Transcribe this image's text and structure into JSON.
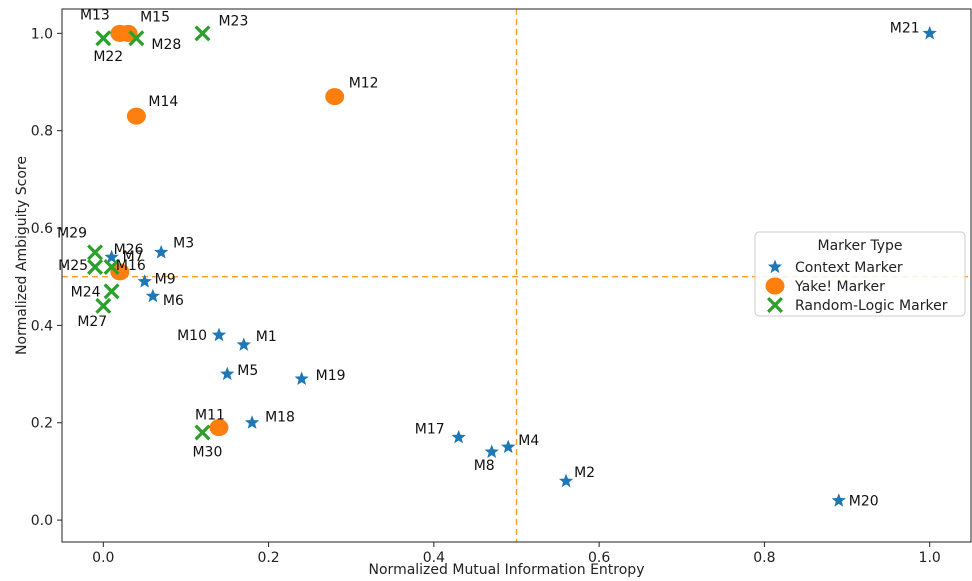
{
  "chart_data": {
    "type": "scatter",
    "title": "",
    "xlabel": "Normalized Mutual Information Entropy",
    "ylabel": "Normalized Ambiguity Score",
    "xlim": [
      -0.05,
      1.05
    ],
    "ylim": [
      -0.045,
      1.05
    ],
    "xticks": [
      0.0,
      0.2,
      0.4,
      0.6,
      0.8,
      1.0
    ],
    "yticks": [
      0.0,
      0.2,
      0.4,
      0.6,
      0.8,
      1.0
    ],
    "xtick_labels": [
      "0.0",
      "0.2",
      "0.4",
      "0.6",
      "0.8",
      "1.0"
    ],
    "ytick_labels": [
      "0.0",
      "0.2",
      "0.4",
      "0.6",
      "0.8",
      "1.0"
    ],
    "reference_lines": {
      "x": 0.5,
      "y": 0.5,
      "color": "#ff9f2a",
      "style": "dashed"
    },
    "grid": false,
    "legend": {
      "title": "Marker Type",
      "placement": "center-right",
      "entries": [
        "Context Marker",
        "Yake! Marker",
        "Random-Logic Marker"
      ]
    },
    "series": [
      {
        "name": "Context Marker",
        "marker": "star",
        "color": "#1f77b4",
        "points": [
          {
            "label": "M1",
            "x": 0.17,
            "y": 0.36
          },
          {
            "label": "M2",
            "x": 0.56,
            "y": 0.08
          },
          {
            "label": "M3",
            "x": 0.07,
            "y": 0.55
          },
          {
            "label": "M4",
            "x": 0.49,
            "y": 0.15
          },
          {
            "label": "M5",
            "x": 0.15,
            "y": 0.3
          },
          {
            "label": "M6",
            "x": 0.06,
            "y": 0.46
          },
          {
            "label": "M7",
            "x": 0.01,
            "y": 0.54
          },
          {
            "label": "M8",
            "x": 0.47,
            "y": 0.14
          },
          {
            "label": "M9",
            "x": 0.05,
            "y": 0.49
          },
          {
            "label": "M10",
            "x": 0.14,
            "y": 0.38
          },
          {
            "label": "M17",
            "x": 0.43,
            "y": 0.17
          },
          {
            "label": "M18",
            "x": 0.18,
            "y": 0.2
          },
          {
            "label": "M19",
            "x": 0.24,
            "y": 0.29
          },
          {
            "label": "M20",
            "x": 0.89,
            "y": 0.04
          },
          {
            "label": "M21",
            "x": 1.0,
            "y": 1.0
          }
        ]
      },
      {
        "name": "Yake! Marker",
        "marker": "circle",
        "color": "#ff7f0e",
        "points": [
          {
            "label": "M11",
            "x": 0.14,
            "y": 0.19
          },
          {
            "label": "M12",
            "x": 0.28,
            "y": 0.87
          },
          {
            "label": "M13",
            "x": 0.02,
            "y": 1.0
          },
          {
            "label": "M14",
            "x": 0.04,
            "y": 0.83
          },
          {
            "label": "M15",
            "x": 0.03,
            "y": 1.0
          },
          {
            "label": "M16",
            "x": 0.02,
            "y": 0.51
          }
        ]
      },
      {
        "name": "Random-Logic Marker",
        "marker": "x",
        "color": "#2ca02c",
        "points": [
          {
            "label": "M22",
            "x": 0.0,
            "y": 0.99
          },
          {
            "label": "M23",
            "x": 0.12,
            "y": 1.0
          },
          {
            "label": "M24",
            "x": 0.01,
            "y": 0.47
          },
          {
            "label": "M25",
            "x": -0.01,
            "y": 0.52
          },
          {
            "label": "M26",
            "x": 0.01,
            "y": 0.52
          },
          {
            "label": "M27",
            "x": 0.0,
            "y": 0.44
          },
          {
            "label": "M28",
            "x": 0.04,
            "y": 0.99
          },
          {
            "label": "M29",
            "x": -0.01,
            "y": 0.55
          },
          {
            "label": "M30",
            "x": 0.12,
            "y": 0.18
          }
        ]
      }
    ]
  }
}
